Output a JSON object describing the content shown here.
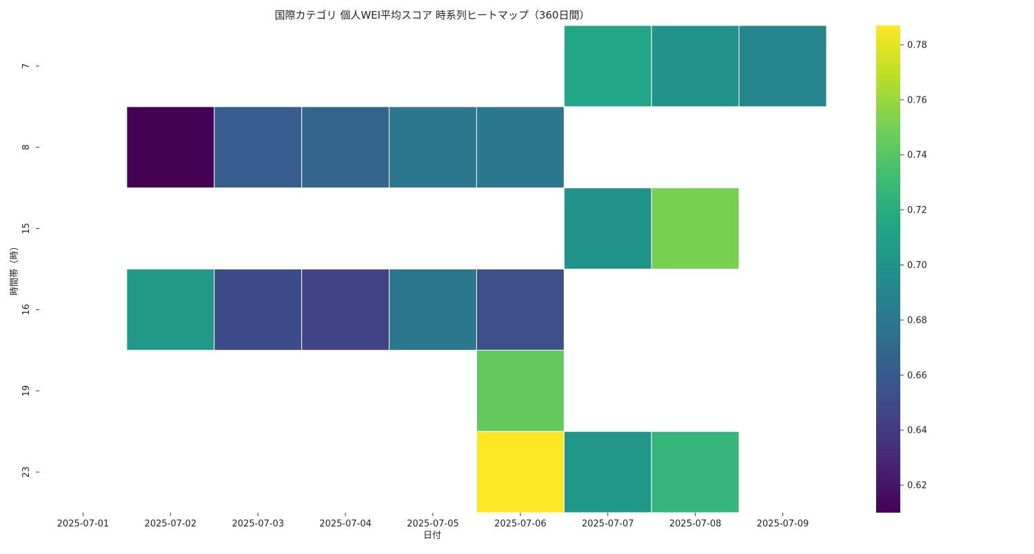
{
  "chart_data": {
    "type": "heatmap",
    "title": "国際カテゴリ 個人WEI平均スコア 時系列ヒートマップ（360日間）",
    "xlabel": "日付",
    "ylabel": "時間帯（時）",
    "x": [
      "2025-07-01",
      "2025-07-02",
      "2025-07-03",
      "2025-07-04",
      "2025-07-05",
      "2025-07-06",
      "2025-07-07",
      "2025-07-08",
      "2025-07-09"
    ],
    "y": [
      "7",
      "8",
      "15",
      "16",
      "19",
      "23"
    ],
    "values": [
      [
        null,
        null,
        null,
        null,
        null,
        null,
        0.715,
        0.7,
        0.69
      ],
      [
        null,
        0.61,
        0.662,
        0.667,
        0.68,
        0.68,
        null,
        null,
        null
      ],
      [
        null,
        null,
        null,
        null,
        null,
        null,
        0.7,
        0.751,
        null
      ],
      [
        null,
        0.705,
        0.65,
        0.645,
        0.68,
        0.652,
        null,
        null,
        null
      ],
      [
        null,
        null,
        null,
        null,
        null,
        0.744,
        null,
        null,
        null
      ],
      [
        null,
        null,
        null,
        null,
        null,
        0.787,
        0.703,
        0.726,
        null
      ]
    ],
    "colormap": "viridis",
    "colorbar": {
      "range": [
        0.61,
        0.787
      ],
      "ticks": [
        0.62,
        0.64,
        0.66,
        0.68,
        0.7,
        0.72,
        0.74,
        0.76,
        0.78
      ],
      "tick_labels": [
        "0.62",
        "0.64",
        "0.66",
        "0.68",
        "0.70",
        "0.72",
        "0.74",
        "0.76",
        "0.78"
      ]
    },
    "grid": false,
    "cell_border_color": "#ffffff"
  }
}
